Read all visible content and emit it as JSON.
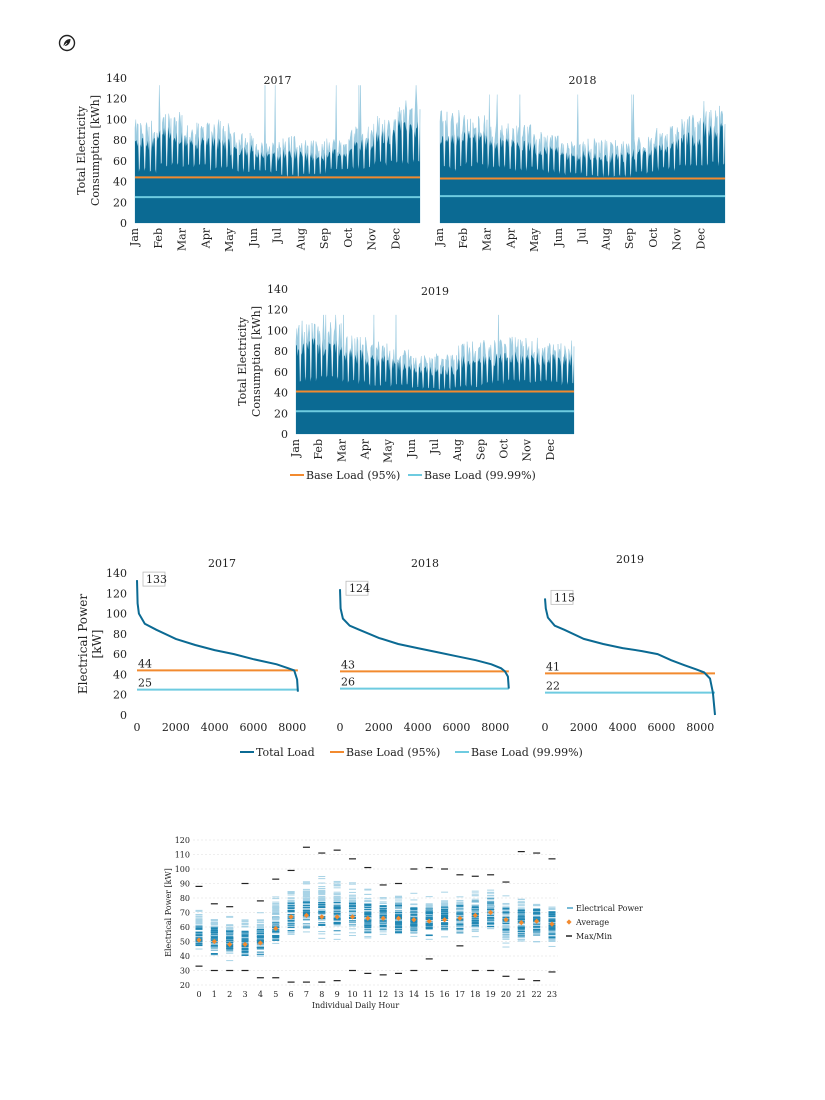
{
  "logo_icon": "leaf-circle-icon",
  "colors": {
    "dark": "#0b6a93",
    "light": "#9ccbe0",
    "orange": "#f28a2f",
    "cyan": "#6ecbe0",
    "axis": "#333333",
    "grid": "#dddddd"
  },
  "chart_data": [
    {
      "id": "timeseries",
      "type": "area",
      "ylabel_lines": [
        "Total Electricity",
        "Consumption [kWh]"
      ],
      "yticks": [
        0,
        20,
        40,
        60,
        80,
        100,
        120,
        140
      ],
      "ylim": [
        0,
        140
      ],
      "months": [
        "Jan",
        "Feb",
        "Mar",
        "Apr",
        "May",
        "Jun",
        "Jul",
        "Aug",
        "Sep",
        "Oct",
        "Nov",
        "Dec"
      ],
      "legend": [
        {
          "label": "Base Load (95%)",
          "color": "#f28a2f"
        },
        {
          "label": "Base Load (99.99%)",
          "color": "#6ecbe0"
        }
      ],
      "panels": [
        {
          "title": "2017",
          "base95": 44,
          "base9999": 25,
          "peak": 133,
          "monthly_base": [
            48,
            53,
            52,
            50,
            49,
            48,
            42,
            44,
            49,
            52,
            55,
            56
          ],
          "monthly_max": [
            100,
            110,
            98,
            100,
            88,
            78,
            86,
            80,
            82,
            96,
            105,
            120
          ]
        },
        {
          "title": "2018",
          "base95": 43,
          "base9999": 26,
          "peak": 124,
          "monthly_base": [
            50,
            54,
            52,
            50,
            48,
            46,
            44,
            43,
            46,
            50,
            52,
            54
          ],
          "monthly_max": [
            110,
            105,
            98,
            95,
            88,
            80,
            82,
            80,
            84,
            94,
            105,
            118
          ]
        },
        {
          "title": "2019",
          "base95": 41,
          "base9999": 22,
          "peak": 115,
          "monthly_base": [
            50,
            52,
            48,
            46,
            44,
            42,
            42,
            44,
            47,
            48,
            48,
            46
          ],
          "monthly_max": [
            112,
            108,
            96,
            90,
            84,
            76,
            78,
            90,
            92,
            94,
            94,
            92
          ]
        }
      ]
    },
    {
      "id": "duration_curves",
      "type": "line",
      "ylabel_lines": [
        "Electrical Power",
        "[kW]"
      ],
      "yticks": [
        0,
        20,
        40,
        60,
        80,
        100,
        120,
        140
      ],
      "xticks": [
        0,
        2000,
        4000,
        6000,
        8000
      ],
      "xlim": [
        0,
        8760
      ],
      "ylim": [
        0,
        140
      ],
      "legend": [
        {
          "label": "Total Load",
          "color": "#0b6a93"
        },
        {
          "label": "Base Load (95%)",
          "color": "#f28a2f"
        },
        {
          "label": "Base Load (99.99%)",
          "color": "#6ecbe0"
        }
      ],
      "panels": [
        {
          "title": "2017",
          "peak_label": "133",
          "base95_label": "44",
          "base9999_label": "25",
          "end_hour": 8290,
          "curve": [
            [
              0,
              133
            ],
            [
              30,
              110
            ],
            [
              100,
              100
            ],
            [
              400,
              90
            ],
            [
              1000,
              84
            ],
            [
              2000,
              75
            ],
            [
              3000,
              69
            ],
            [
              4000,
              64
            ],
            [
              5000,
              60
            ],
            [
              6000,
              55
            ],
            [
              7200,
              50
            ],
            [
              7800,
              46
            ],
            [
              8100,
              44
            ],
            [
              8250,
              35
            ],
            [
              8290,
              23
            ]
          ]
        },
        {
          "title": "2018",
          "peak_label": "124",
          "base95_label": "43",
          "base9999_label": "26",
          "end_hour": 8700,
          "curve": [
            [
              0,
              124
            ],
            [
              30,
              105
            ],
            [
              150,
              95
            ],
            [
              500,
              88
            ],
            [
              1000,
              84
            ],
            [
              2000,
              76
            ],
            [
              3000,
              70
            ],
            [
              4000,
              66
            ],
            [
              5000,
              62
            ],
            [
              6000,
              58
            ],
            [
              7000,
              54
            ],
            [
              7800,
              50
            ],
            [
              8300,
              46
            ],
            [
              8500,
              43
            ],
            [
              8650,
              38
            ],
            [
              8700,
              26
            ]
          ]
        },
        {
          "title": "2019",
          "peak_label": "115",
          "base95_label": "41",
          "base9999_label": "22",
          "end_hour": 8760,
          "curve": [
            [
              0,
              115
            ],
            [
              40,
              105
            ],
            [
              150,
              96
            ],
            [
              500,
              88
            ],
            [
              1000,
              84
            ],
            [
              2000,
              75
            ],
            [
              3000,
              70
            ],
            [
              4000,
              66
            ],
            [
              5000,
              63
            ],
            [
              5800,
              60
            ],
            [
              6500,
              54
            ],
            [
              7200,
              49
            ],
            [
              7800,
              45
            ],
            [
              8200,
              42
            ],
            [
              8500,
              36
            ],
            [
              8650,
              22
            ],
            [
              8760,
              0
            ]
          ]
        }
      ]
    },
    {
      "id": "hourly_distribution",
      "type": "scatter",
      "ylabel": "Electrical Power [kW]",
      "xlabel": "Individual Daily Hour",
      "ylim": [
        20,
        120
      ],
      "yticks": [
        20,
        30,
        40,
        50,
        60,
        70,
        80,
        90,
        100,
        110,
        120
      ],
      "hours": [
        0,
        1,
        2,
        3,
        4,
        5,
        6,
        7,
        8,
        9,
        10,
        11,
        12,
        13,
        14,
        15,
        16,
        17,
        18,
        19,
        20,
        21,
        22,
        23
      ],
      "hour_labels": [
        "0",
        "1",
        "2",
        "3",
        "4",
        "5",
        "6",
        "7",
        "8",
        "9",
        "10",
        "11",
        "12",
        "13",
        "14",
        "15",
        "16",
        "17",
        "18",
        "19",
        "20",
        "21",
        "22",
        "23"
      ],
      "max": [
        88,
        76,
        74,
        90,
        78,
        93,
        99,
        115,
        111,
        113,
        107,
        101,
        89,
        90,
        100,
        101,
        100,
        96,
        95,
        96,
        91,
        112,
        111,
        107
      ],
      "min": [
        33,
        30,
        30,
        30,
        25,
        25,
        22,
        22,
        22,
        23,
        30,
        28,
        27,
        28,
        30,
        38,
        30,
        47,
        30,
        30,
        26,
        24,
        23,
        29
      ],
      "average": [
        51,
        50,
        48,
        48,
        49,
        59,
        67,
        68,
        67,
        67,
        67,
        66,
        66,
        66,
        65,
        64,
        65,
        66,
        68,
        70,
        65,
        63,
        64,
        62
      ],
      "spread_low": [
        38,
        36,
        35,
        36,
        36,
        40,
        48,
        48,
        48,
        48,
        48,
        48,
        50,
        50,
        50,
        50,
        50,
        50,
        50,
        50,
        44,
        42,
        42,
        40
      ],
      "spread_high": [
        78,
        72,
        70,
        68,
        72,
        90,
        95,
        100,
        100,
        100,
        95,
        90,
        85,
        85,
        85,
        85,
        85,
        85,
        88,
        90,
        86,
        85,
        85,
        82
      ],
      "legend": [
        {
          "label": "Electrical Power",
          "color": "#4aa3c8"
        },
        {
          "label": "Average",
          "color": "#f28a2f"
        },
        {
          "label": "Max/Min",
          "color": "#222222"
        }
      ]
    }
  ]
}
